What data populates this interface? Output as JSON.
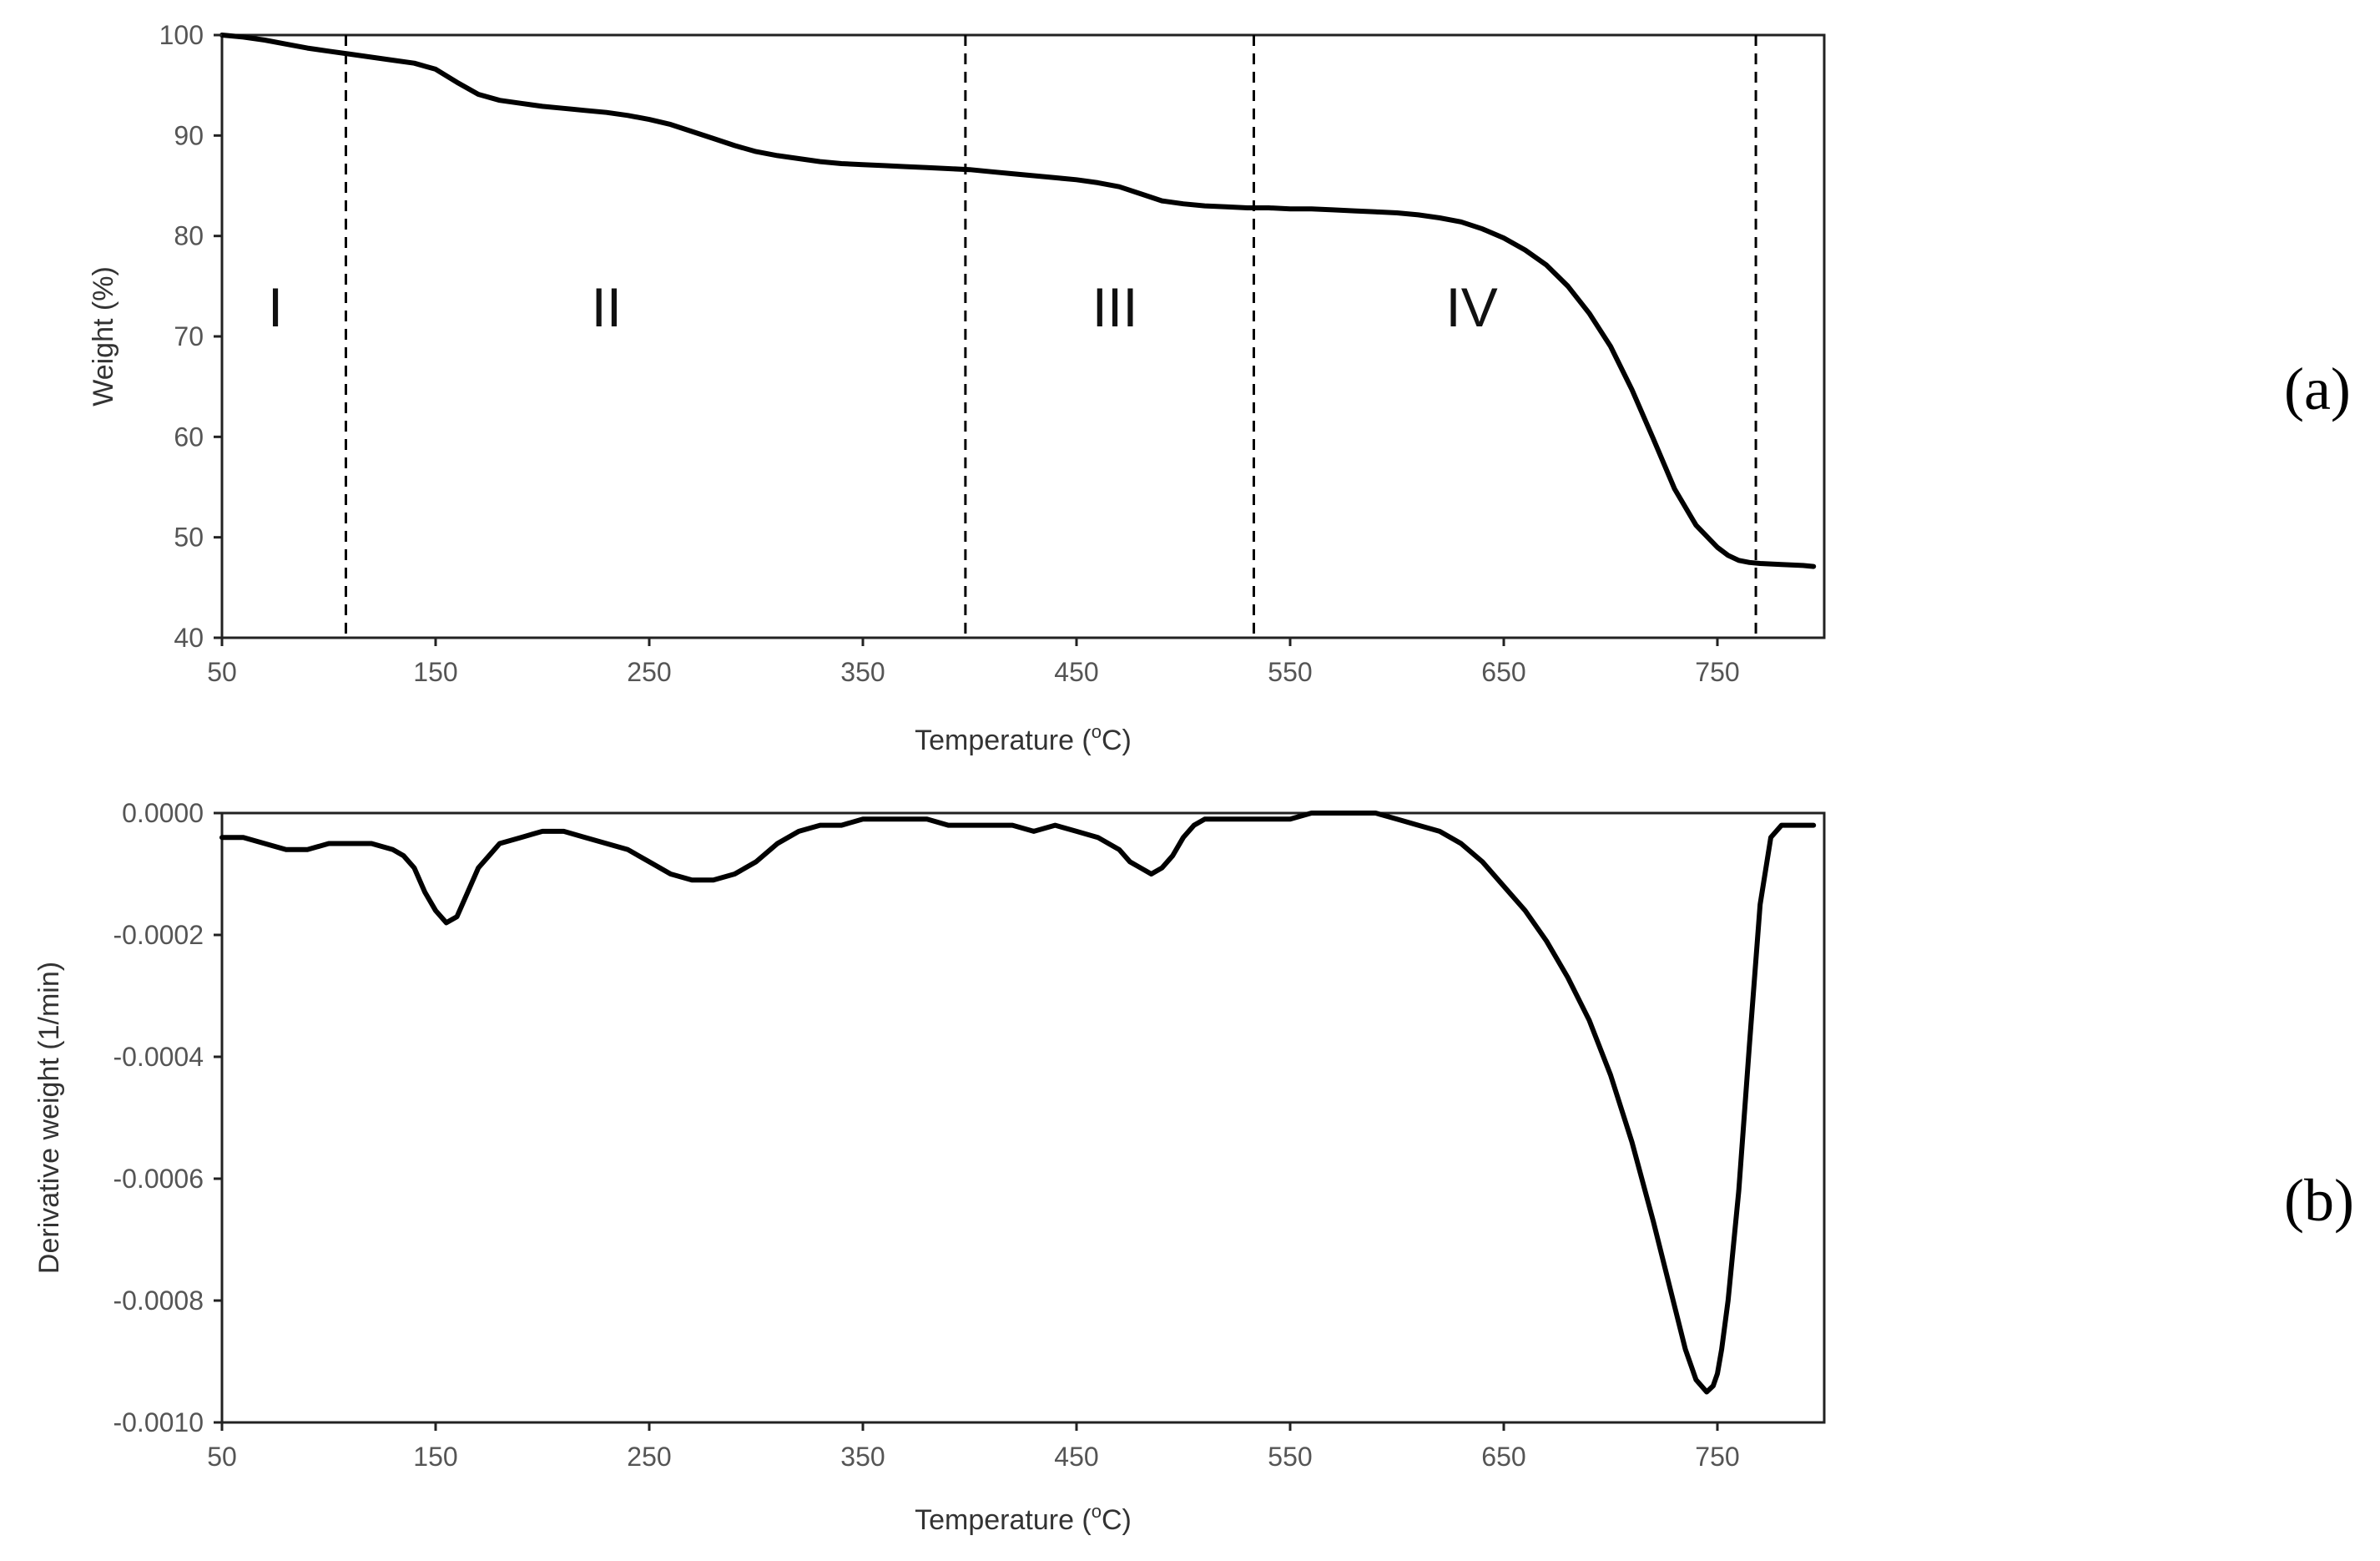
{
  "chart_data": [
    {
      "id": "a",
      "type": "line",
      "panel_label": "(a)",
      "xlabel": "Temperature (",
      "xlabel_sup": "o",
      "xlabel_unit": "C)",
      "ylabel": "Weight (%)",
      "xlim": [
        50,
        800
      ],
      "ylim": [
        40,
        100
      ],
      "x_ticks": [
        50,
        150,
        250,
        350,
        450,
        550,
        650,
        750
      ],
      "y_ticks": [
        40,
        50,
        60,
        70,
        80,
        90,
        100
      ],
      "x_tick_labels": [
        "50",
        "150",
        "250",
        "350",
        "450",
        "550",
        "650",
        "750"
      ],
      "y_tick_labels": [
        "40",
        "50",
        "60",
        "70",
        "80",
        "90",
        "100"
      ],
      "grid": false,
      "boundaries": [
        108,
        398,
        533,
        768
      ],
      "regions": [
        {
          "label": "I",
          "x": 75,
          "y": 71
        },
        {
          "label": "II",
          "x": 230,
          "y": 71
        },
        {
          "label": "III",
          "x": 468,
          "y": 71
        },
        {
          "label": "IV",
          "x": 635,
          "y": 71
        }
      ],
      "series": [
        {
          "name": "Weight",
          "x": [
            50,
            60,
            70,
            80,
            90,
            100,
            110,
            120,
            130,
            140,
            150,
            160,
            170,
            180,
            190,
            200,
            210,
            220,
            230,
            240,
            250,
            260,
            270,
            280,
            290,
            300,
            310,
            320,
            330,
            340,
            350,
            360,
            370,
            380,
            390,
            400,
            410,
            420,
            430,
            440,
            450,
            460,
            470,
            480,
            490,
            500,
            510,
            520,
            530,
            540,
            550,
            560,
            570,
            580,
            590,
            600,
            610,
            620,
            630,
            640,
            650,
            660,
            670,
            680,
            690,
            700,
            710,
            720,
            730,
            740,
            750,
            755,
            760,
            765,
            770,
            780,
            790,
            795
          ],
          "y": [
            100,
            99.8,
            99.5,
            99.1,
            98.7,
            98.4,
            98.1,
            97.8,
            97.5,
            97.2,
            96.6,
            95.3,
            94.1,
            93.5,
            93.2,
            92.9,
            92.7,
            92.5,
            92.3,
            92.0,
            91.6,
            91.1,
            90.4,
            89.7,
            89.0,
            88.4,
            88.0,
            87.7,
            87.4,
            87.2,
            87.1,
            87.0,
            86.9,
            86.8,
            86.7,
            86.6,
            86.4,
            86.2,
            86.0,
            85.8,
            85.6,
            85.3,
            84.9,
            84.2,
            83.5,
            83.2,
            83.0,
            82.9,
            82.8,
            82.8,
            82.7,
            82.7,
            82.6,
            82.5,
            82.4,
            82.3,
            82.1,
            81.8,
            81.4,
            80.7,
            79.8,
            78.6,
            77.1,
            75.0,
            72.3,
            69.0,
            64.7,
            59.8,
            54.8,
            51.2,
            49.0,
            48.2,
            47.7,
            47.5,
            47.4,
            47.3,
            47.2,
            47.1
          ]
        }
      ]
    },
    {
      "id": "b",
      "type": "line",
      "panel_label": "(b)",
      "xlabel": "Temperature (",
      "xlabel_sup": "o",
      "xlabel_unit": "C)",
      "ylabel": "Derivative weight  (1/min)",
      "xlim": [
        50,
        800
      ],
      "ylim": [
        -0.001,
        0
      ],
      "x_ticks": [
        50,
        150,
        250,
        350,
        450,
        550,
        650,
        750
      ],
      "y_ticks": [
        -0.001,
        -0.0008,
        -0.0006,
        -0.0004,
        -0.0002,
        0
      ],
      "x_tick_labels": [
        "50",
        "150",
        "250",
        "350",
        "450",
        "550",
        "650",
        "750"
      ],
      "y_tick_labels": [
        "-0.0010",
        "-0.0008",
        "-0.0006",
        "-0.0004",
        "-0.0002",
        "0.0000"
      ],
      "grid": false,
      "series": [
        {
          "name": "Derivative weight",
          "x": [
            50,
            60,
            70,
            80,
            90,
            100,
            110,
            120,
            130,
            135,
            140,
            145,
            150,
            155,
            160,
            165,
            170,
            175,
            180,
            190,
            200,
            210,
            220,
            230,
            240,
            250,
            260,
            270,
            280,
            290,
            300,
            310,
            320,
            330,
            340,
            350,
            360,
            370,
            380,
            390,
            400,
            410,
            420,
            430,
            440,
            450,
            460,
            470,
            475,
            480,
            485,
            490,
            495,
            500,
            505,
            510,
            520,
            530,
            540,
            550,
            560,
            570,
            580,
            590,
            600,
            610,
            620,
            630,
            640,
            650,
            660,
            670,
            680,
            690,
            700,
            710,
            720,
            730,
            735,
            740,
            745,
            748,
            750,
            752,
            755,
            760,
            765,
            770,
            775,
            780,
            785,
            790,
            795
          ],
          "y": [
            -4e-05,
            -4e-05,
            -5e-05,
            -6e-05,
            -6e-05,
            -5e-05,
            -5e-05,
            -5e-05,
            -6e-05,
            -7e-05,
            -9e-05,
            -0.00013,
            -0.00016,
            -0.00018,
            -0.00017,
            -0.00013,
            -9e-05,
            -7e-05,
            -5e-05,
            -4e-05,
            -3e-05,
            -3e-05,
            -4e-05,
            -5e-05,
            -6e-05,
            -8e-05,
            -0.0001,
            -0.00011,
            -0.00011,
            -0.0001,
            -8e-05,
            -5e-05,
            -3e-05,
            -2e-05,
            -2e-05,
            -1e-05,
            -1e-05,
            -1e-05,
            -1e-05,
            -2e-05,
            -2e-05,
            -2e-05,
            -2e-05,
            -3e-05,
            -2e-05,
            -3e-05,
            -4e-05,
            -6e-05,
            -8e-05,
            -9e-05,
            -0.0001,
            -9e-05,
            -7e-05,
            -4e-05,
            -2e-05,
            -1e-05,
            -1e-05,
            -1e-05,
            -1e-05,
            -1e-05,
            0,
            0,
            0,
            0,
            -1e-05,
            -2e-05,
            -3e-05,
            -5e-05,
            -8e-05,
            -0.00012,
            -0.00016,
            -0.00021,
            -0.00027,
            -0.00034,
            -0.00043,
            -0.00054,
            -0.00067,
            -0.00081,
            -0.00088,
            -0.00093,
            -0.00095,
            -0.00094,
            -0.00092,
            -0.00088,
            -0.0008,
            -0.00062,
            -0.00038,
            -0.00015,
            -4e-05,
            -2e-05,
            -2e-05,
            -2e-05,
            -2e-05
          ]
        }
      ]
    }
  ]
}
